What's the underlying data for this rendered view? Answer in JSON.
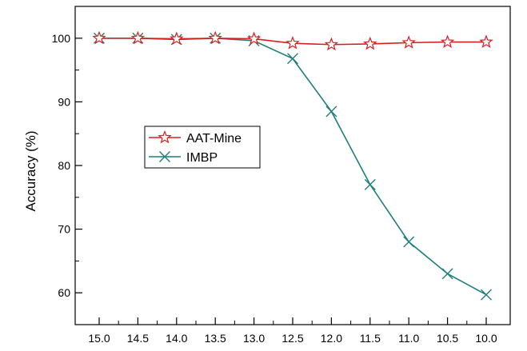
{
  "chart_data": {
    "type": "line",
    "title": "",
    "xlabel": "",
    "ylabel": "Accuracy (%)",
    "x": [
      15.0,
      14.5,
      14.0,
      13.5,
      13.0,
      12.5,
      12.0,
      11.5,
      11.0,
      10.5,
      10.0
    ],
    "x_tick_labels": [
      "15.0",
      "14.5",
      "14.0",
      "13.5",
      "13.0",
      "12.5",
      "12.0",
      "11.5",
      "11.0",
      "10.5",
      "10.0"
    ],
    "x_reversed": true,
    "y_ticks": [
      60,
      70,
      80,
      90,
      100
    ],
    "y_tick_labels": [
      "60",
      "70",
      "80",
      "90",
      "100"
    ],
    "ylim": [
      55,
      105
    ],
    "grid": false,
    "legend_placement": "center-left",
    "series": [
      {
        "name": "AAT-Mine",
        "color": "#d62020",
        "marker": "star",
        "values": [
          100.0,
          100.0,
          99.9,
          100.0,
          99.9,
          99.2,
          99.0,
          99.1,
          99.3,
          99.4,
          99.4
        ]
      },
      {
        "name": "IMBP",
        "color": "#1f7f7a",
        "marker": "x",
        "values": [
          100.0,
          100.0,
          99.8,
          100.0,
          99.6,
          96.8,
          88.5,
          77.0,
          68.0,
          63.0,
          59.7
        ]
      }
    ]
  }
}
